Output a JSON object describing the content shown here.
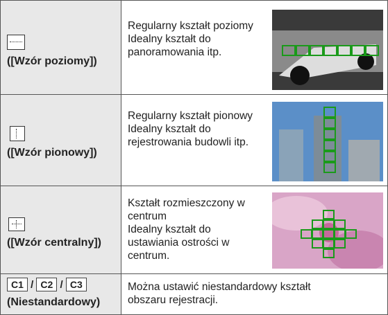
{
  "rows": [
    {
      "label": "([Wzór poziomy])",
      "description": [
        "Regularny kształt poziomy",
        "Idealny kształt do panoramowania itp."
      ]
    },
    {
      "label": "([Wzór pionowy])",
      "description": [
        "Regularny kształt pionowy",
        "Idealny kształt do rejestrowania budowli itp."
      ]
    },
    {
      "label": "([Wzór centralny])",
      "description": [
        "Kształt rozmieszczony w centrum",
        "Idealny kształt do ustawiania ostrości w centrum."
      ]
    }
  ],
  "custom_row": {
    "icons": [
      "C1",
      "C2",
      "C3"
    ],
    "separator": "/",
    "label": "(Niestandardowy)",
    "description": "Można ustawić niestandardowy kształt obszaru rejestracji."
  }
}
